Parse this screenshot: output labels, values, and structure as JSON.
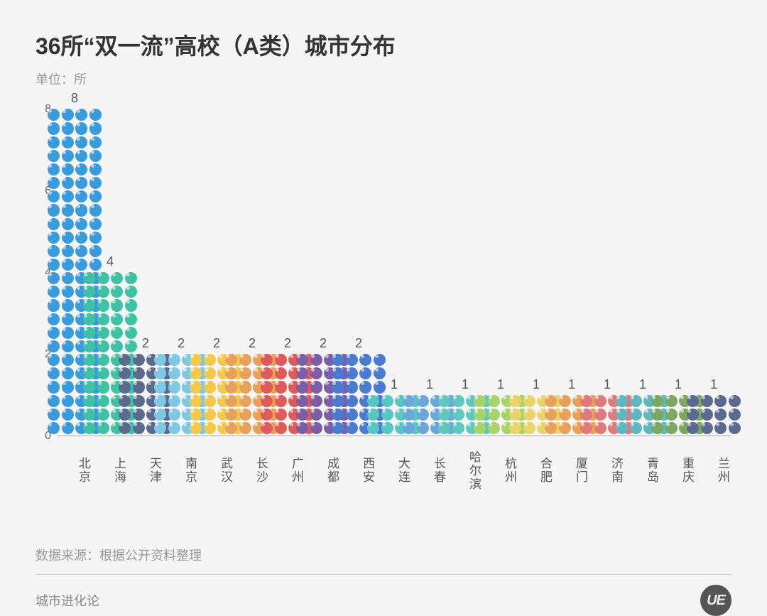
{
  "title": "36所“双一流”高校（A类）城市分布",
  "subtitle": "单位：所",
  "chart": {
    "type": "bar",
    "ylim": [
      0,
      8
    ],
    "ytick_step": 2,
    "yticks": [
      0,
      2,
      4,
      6,
      8
    ],
    "background_color": "#f5f5f5",
    "axis_color": "#aaaaaa",
    "label_fontsize": 17,
    "value_fontsize": 18,
    "icons_per_row": 4,
    "rows_per_unit": 3,
    "bars": [
      {
        "category": "北京",
        "value": 8,
        "color": "#3a9bdc"
      },
      {
        "category": "上海",
        "value": 4,
        "color": "#3fc1a3"
      },
      {
        "category": "天津",
        "value": 2,
        "color": "#5b6a8f"
      },
      {
        "category": "南京",
        "value": 2,
        "color": "#7ec8e3"
      },
      {
        "category": "武汉",
        "value": 2,
        "color": "#f2c94c"
      },
      {
        "category": "长沙",
        "value": 2,
        "color": "#e8a15a"
      },
      {
        "category": "广州",
        "value": 2,
        "color": "#e05a5a"
      },
      {
        "category": "成都",
        "value": 2,
        "color": "#7a5fa8"
      },
      {
        "category": "西安",
        "value": 2,
        "color": "#4a7bd1"
      },
      {
        "category": "大连",
        "value": 1,
        "color": "#57c7c1"
      },
      {
        "category": "长春",
        "value": 1,
        "color": "#6aa8d8"
      },
      {
        "category": "哈尔滨",
        "value": 1,
        "color": "#5fc8bf"
      },
      {
        "category": "杭州",
        "value": 1,
        "color": "#a8d36a"
      },
      {
        "category": "合肥",
        "value": 1,
        "color": "#e8d56a"
      },
      {
        "category": "厦门",
        "value": 1,
        "color": "#e8a15a"
      },
      {
        "category": "济南",
        "value": 1,
        "color": "#e07a7a"
      },
      {
        "category": "青岛",
        "value": 1,
        "color": "#5fb8c1"
      },
      {
        "category": "重庆",
        "value": 1,
        "color": "#7aa85f"
      },
      {
        "category": "兰州",
        "value": 1,
        "color": "#5b6a8f"
      }
    ]
  },
  "source_label": "数据来源：根据公开资料整理",
  "brand": "城市进化论",
  "logo_text": "UE"
}
